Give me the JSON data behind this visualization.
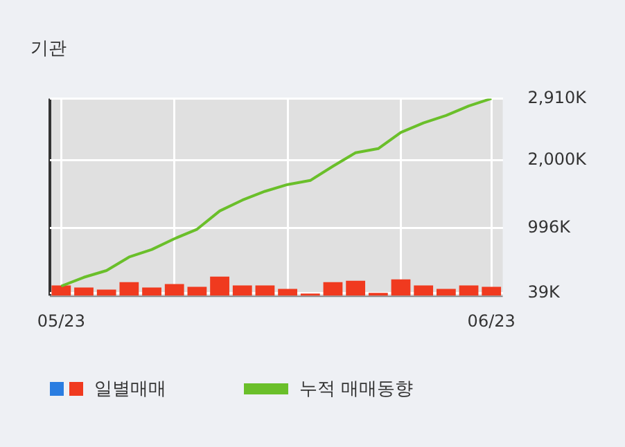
{
  "chart_data": {
    "type": "bar",
    "title": "기관",
    "categories": [
      "05/23",
      null,
      null,
      null,
      null,
      null,
      null,
      null,
      null,
      null,
      null,
      null,
      null,
      null,
      null,
      null,
      null,
      null,
      null,
      "06/23"
    ],
    "series": [
      {
        "name": "일별매매",
        "color": "#f03a1f",
        "values": [
          150,
          120,
          90,
          200,
          120,
          170,
          130,
          280,
          150,
          150,
          100,
          30,
          200,
          220,
          40,
          240,
          150,
          100,
          150,
          130
        ]
      },
      {
        "name": "누적 매매동향",
        "type": "line",
        "color": "#6abf2a",
        "values": [
          140,
          270,
          370,
          570,
          680,
          840,
          980,
          1250,
          1410,
          1540,
          1640,
          1700,
          1910,
          2110,
          2170,
          2410,
          2550,
          2660,
          2800,
          2910
        ]
      }
    ],
    "ylim": [
      0,
      2910
    ],
    "yticks": [
      {
        "value": 39,
        "label": "39K"
      },
      {
        "value": 996,
        "label": "996K"
      },
      {
        "value": 2000,
        "label": "2,000K"
      },
      {
        "value": 2910,
        "label": "2,910K"
      }
    ],
    "grid": true,
    "legend": "bottom",
    "marker": "none"
  }
}
